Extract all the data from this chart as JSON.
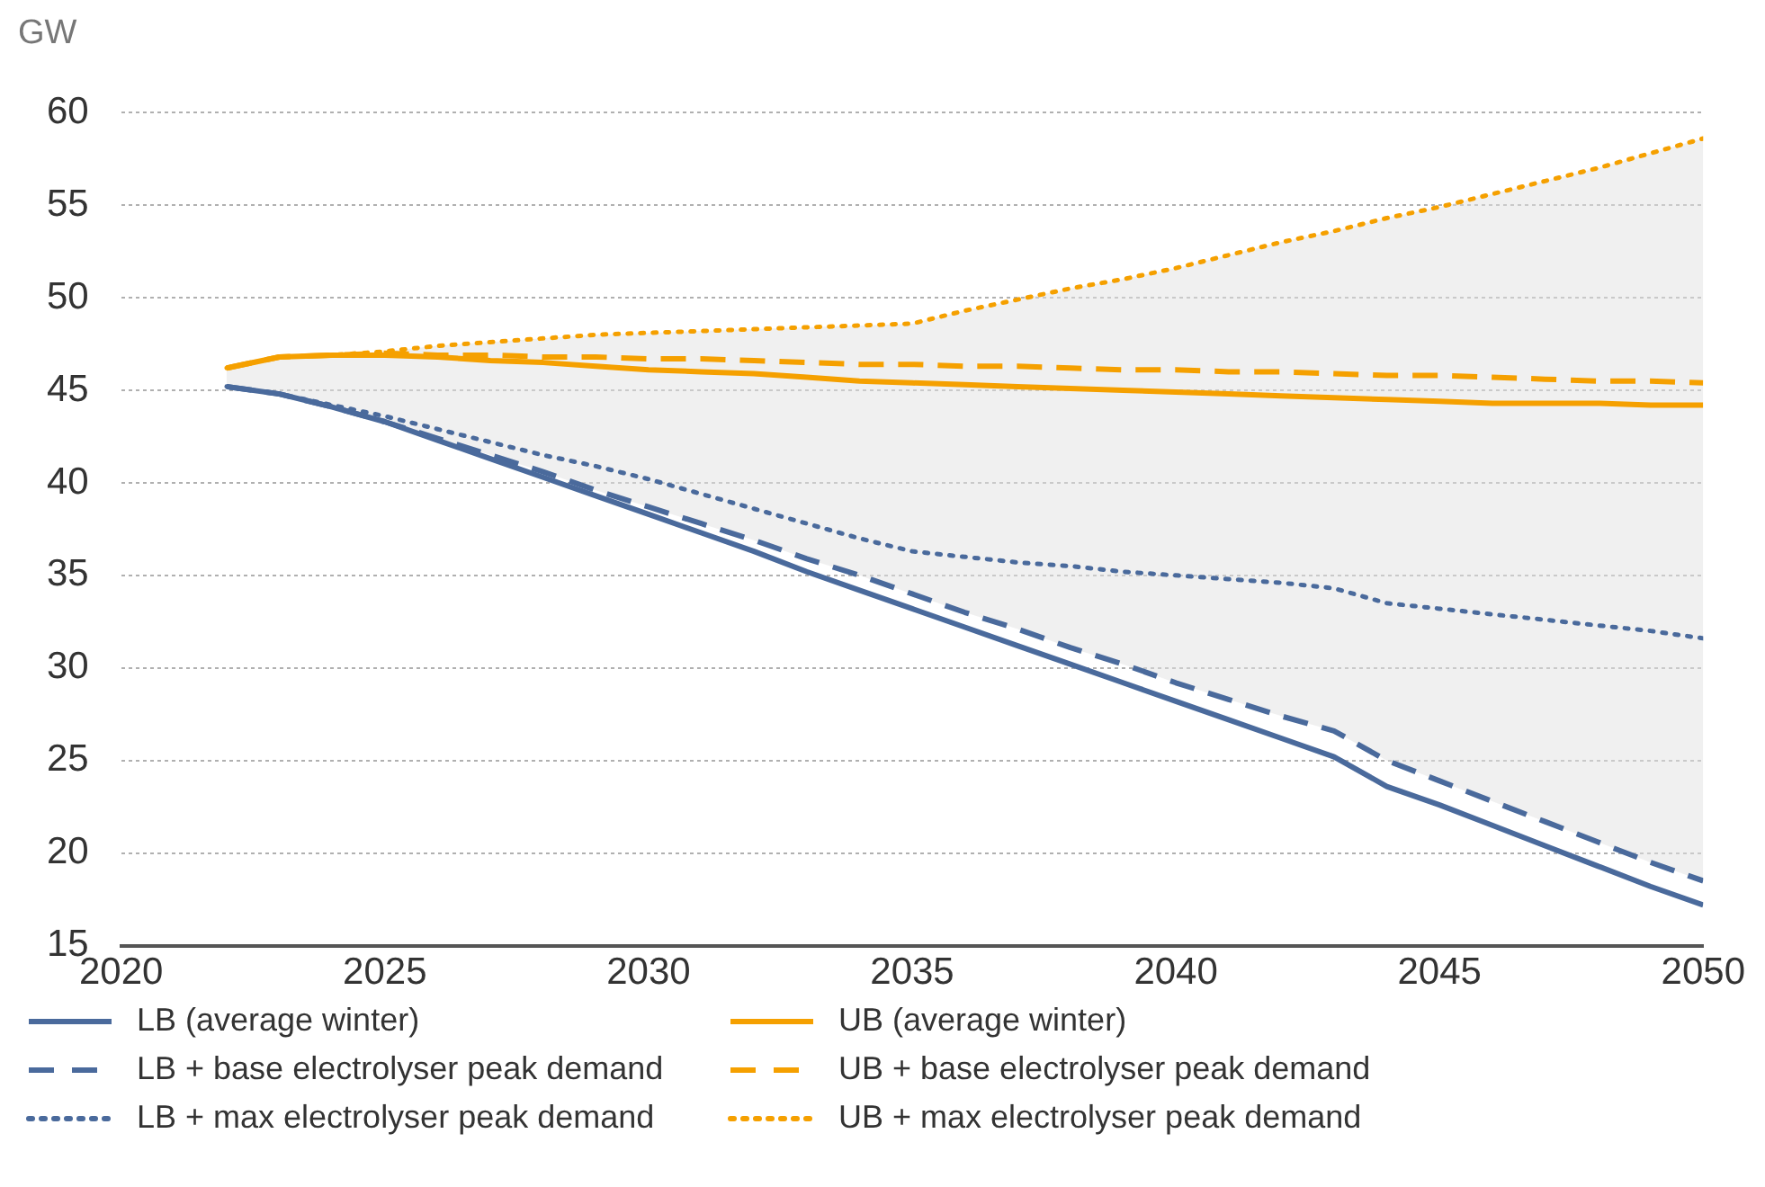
{
  "chart_data": {
    "type": "line",
    "ylabel": "GW",
    "x": [
      2022,
      2023,
      2024,
      2025,
      2026,
      2027,
      2028,
      2029,
      2030,
      2031,
      2032,
      2033,
      2034,
      2035,
      2036,
      2037,
      2038,
      2039,
      2040,
      2041,
      2042,
      2043,
      2044,
      2045,
      2046,
      2047,
      2048,
      2049,
      2050
    ],
    "series": [
      {
        "name": "LB (average winter)",
        "color": "#4a6a9c",
        "line_style": "solid",
        "values": [
          45.2,
          44.8,
          44.1,
          43.3,
          42.3,
          41.3,
          40.3,
          39.3,
          38.3,
          37.3,
          36.3,
          35.2,
          34.2,
          33.2,
          32.2,
          31.2,
          30.2,
          29.2,
          28.2,
          27.2,
          26.2,
          25.2,
          23.6,
          22.6,
          21.5,
          20.4,
          19.3,
          18.2,
          17.2
        ]
      },
      {
        "name": "UB (average winter)",
        "color": "#f5a000",
        "line_style": "solid",
        "values": [
          46.2,
          46.8,
          46.9,
          46.9,
          46.8,
          46.6,
          46.5,
          46.3,
          46.1,
          46.0,
          45.9,
          45.7,
          45.5,
          45.4,
          45.3,
          45.2,
          45.1,
          45.0,
          44.9,
          44.8,
          44.7,
          44.6,
          44.5,
          44.4,
          44.3,
          44.3,
          44.3,
          44.2,
          44.2
        ]
      },
      {
        "name": "LB + base electrolyser peak demand",
        "color": "#4a6a9c",
        "line_style": "dashed",
        "values": [
          45.2,
          44.8,
          44.1,
          43.3,
          42.4,
          41.5,
          40.6,
          39.6,
          38.7,
          37.8,
          36.9,
          35.9,
          35.0,
          34.0,
          33.0,
          32.1,
          31.1,
          30.2,
          29.2,
          28.3,
          27.4,
          26.6,
          25.0,
          23.9,
          22.8,
          21.7,
          20.6,
          19.5,
          18.5
        ]
      },
      {
        "name": "UB + base electrolyser peak demand",
        "color": "#f5a000",
        "line_style": "dashed",
        "values": [
          46.2,
          46.8,
          46.9,
          47.0,
          46.9,
          46.9,
          46.8,
          46.8,
          46.7,
          46.7,
          46.6,
          46.5,
          46.4,
          46.4,
          46.3,
          46.3,
          46.2,
          46.1,
          46.1,
          46.0,
          46.0,
          45.9,
          45.8,
          45.8,
          45.7,
          45.6,
          45.5,
          45.5,
          45.4
        ]
      },
      {
        "name": "LB + max electrolyser peak demand",
        "color": "#4a6a9c",
        "line_style": "dotted",
        "values": [
          45.2,
          44.8,
          44.2,
          43.6,
          42.9,
          42.2,
          41.5,
          40.9,
          40.2,
          39.4,
          38.6,
          37.8,
          37.0,
          36.3,
          36.0,
          35.7,
          35.5,
          35.2,
          35.0,
          34.8,
          34.6,
          34.3,
          33.5,
          33.2,
          32.9,
          32.6,
          32.3,
          32.0,
          31.6
        ]
      },
      {
        "name": "UB + max electrolyser peak demand",
        "color": "#f5a000",
        "line_style": "dotted",
        "values": [
          46.2,
          46.8,
          46.9,
          47.1,
          47.4,
          47.6,
          47.8,
          48.0,
          48.1,
          48.2,
          48.3,
          48.4,
          48.5,
          48.6,
          49.3,
          49.9,
          50.5,
          51.0,
          51.6,
          52.3,
          53.0,
          53.6,
          54.3,
          54.9,
          55.6,
          56.3,
          57.0,
          57.8,
          58.6
        ],
        "upper": [
          46.2,
          46.8,
          46.9,
          47.1,
          47.4,
          47.6,
          47.8,
          48.0,
          48.1,
          48.2,
          48.3,
          48.4,
          48.5,
          48.6,
          49.3,
          49.9,
          50.5,
          51.0,
          51.6,
          52.3,
          53.0,
          53.6,
          54.3,
          54.9,
          55.6,
          56.3,
          57.0,
          57.8,
          58.6
        ],
        "lower": [
          45.2,
          44.8,
          44.1,
          43.3,
          42.4,
          41.5,
          40.6,
          39.6,
          38.7,
          37.8,
          36.9,
          35.9,
          35.0,
          34.0,
          33.0,
          32.1,
          31.1,
          30.2,
          29.2,
          28.3,
          27.4,
          26.6,
          25.0,
          23.9,
          22.8,
          21.7,
          20.6,
          19.5,
          18.5
        ]
      }
    ],
    "xlim": [
      2020,
      2050
    ],
    "xticks": [
      2020,
      2025,
      2030,
      2035,
      2040,
      2045,
      2050
    ],
    "ylim": [
      15,
      60
    ],
    "yticks": [
      15,
      20,
      25,
      30,
      35,
      40,
      45,
      50,
      55,
      60
    ],
    "grid": "y",
    "legend": "bottom",
    "marker": "none"
  }
}
